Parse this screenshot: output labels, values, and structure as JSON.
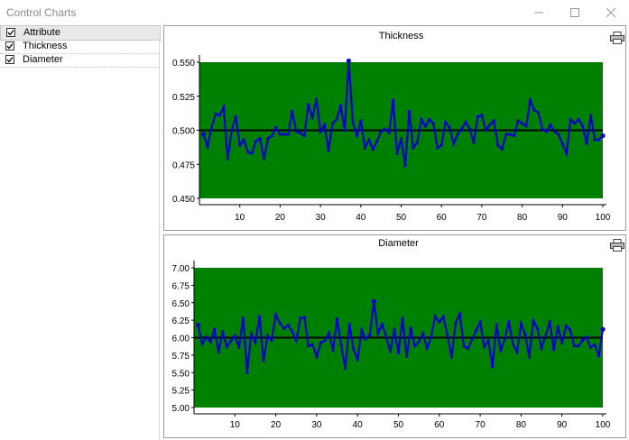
{
  "window": {
    "title": "Control Charts",
    "minimize_icon": "minimize-icon",
    "maximize_icon": "maximize-icon",
    "close_icon": "close-icon"
  },
  "sidebar": {
    "items": [
      {
        "label": "Attribute",
        "checked": true,
        "selected": true
      },
      {
        "label": "Thickness",
        "checked": true,
        "selected": false
      },
      {
        "label": "Diameter",
        "checked": true,
        "selected": false
      }
    ]
  },
  "colors": {
    "plot_background": "#008000",
    "series_line": "#0000c8",
    "center_line": "#000000"
  },
  "chart_data": [
    {
      "type": "line",
      "title": "Thickness",
      "xlim": [
        0,
        100
      ],
      "ylim": [
        0.45,
        0.55
      ],
      "center_line": 0.5,
      "x_ticks": [
        "10",
        "20",
        "30",
        "40",
        "50",
        "60",
        "70",
        "80",
        "90",
        "100"
      ],
      "y_ticks": [
        "0.450",
        "0.475",
        "0.500",
        "0.525",
        "0.550"
      ],
      "print_icon": "printer-icon",
      "values": [
        0.497,
        0.488,
        0.502,
        0.512,
        0.511,
        0.517,
        0.479,
        0.5,
        0.51,
        0.489,
        0.493,
        0.484,
        0.483,
        0.492,
        0.494,
        0.479,
        0.494,
        0.496,
        0.502,
        0.497,
        0.497,
        0.497,
        0.514,
        0.499,
        0.498,
        0.496,
        0.519,
        0.509,
        0.523,
        0.499,
        0.504,
        0.485,
        0.505,
        0.508,
        0.518,
        0.5,
        0.551,
        0.506,
        0.496,
        0.507,
        0.487,
        0.493,
        0.486,
        0.492,
        0.499,
        0.501,
        0.498,
        0.522,
        0.483,
        0.494,
        0.474,
        0.514,
        0.487,
        0.491,
        0.508,
        0.503,
        0.508,
        0.505,
        0.487,
        0.489,
        0.506,
        0.502,
        0.49,
        0.497,
        0.501,
        0.506,
        0.501,
        0.491,
        0.51,
        0.511,
        0.5,
        0.504,
        0.507,
        0.489,
        0.486,
        0.497,
        0.497,
        0.496,
        0.507,
        0.505,
        0.503,
        0.522,
        0.515,
        0.513,
        0.501,
        0.499,
        0.504,
        0.499,
        0.497,
        0.49,
        0.483,
        0.508,
        0.505,
        0.508,
        0.503,
        0.49,
        0.511,
        0.493,
        0.493,
        0.496
      ]
    },
    {
      "type": "line",
      "title": "Diameter",
      "xlim": [
        0,
        100
      ],
      "ylim": [
        5.0,
        7.0
      ],
      "center_line": 6.0,
      "x_ticks": [
        "10",
        "20",
        "30",
        "40",
        "50",
        "60",
        "70",
        "80",
        "90",
        "100"
      ],
      "y_ticks": [
        "5.00",
        "5.25",
        "5.50",
        "5.75",
        "6.00",
        "6.25",
        "6.50",
        "6.75",
        "7.00"
      ],
      "print_icon": "printer-icon",
      "values": [
        6.18,
        5.91,
        6.01,
        5.94,
        6.12,
        5.79,
        6.09,
        5.87,
        5.95,
        6.03,
        5.86,
        6.28,
        5.5,
        6.07,
        5.93,
        6.3,
        5.67,
        6.03,
        5.96,
        6.33,
        6.21,
        6.13,
        6.18,
        6.09,
        5.96,
        6.28,
        6.29,
        5.88,
        5.9,
        5.73,
        5.93,
        5.96,
        6.07,
        5.82,
        6.27,
        5.89,
        5.56,
        6.19,
        5.84,
        5.68,
        6.11,
        5.98,
        6.04,
        6.52,
        6.06,
        6.19,
        6.02,
        5.8,
        6.12,
        5.78,
        6.28,
        5.73,
        6.14,
        5.88,
        5.94,
        6.06,
        5.85,
        6.01,
        6.31,
        6.22,
        6.3,
        6.03,
        5.72,
        6.21,
        6.34,
        5.88,
        5.84,
        5.98,
        6.1,
        6.22,
        5.87,
        5.96,
        5.58,
        6.19,
        5.81,
        5.98,
        6.23,
        5.91,
        5.79,
        6.2,
        6.05,
        5.72,
        6.24,
        6.13,
        5.85,
        6.03,
        6.23,
        5.83,
        6.16,
        5.92,
        6.17,
        6.11,
        5.88,
        5.88,
        5.96,
        6.01,
        5.86,
        5.9,
        5.74,
        6.12
      ]
    }
  ]
}
